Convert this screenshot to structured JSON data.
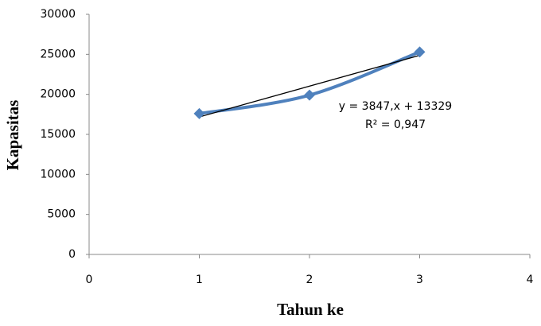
{
  "chart_data": {
    "type": "scatter",
    "x_label": "Tahun ke",
    "y_label": "Kapasitas",
    "x": [
      1,
      2,
      3
    ],
    "series": [
      {
        "name": "Kapasitas",
        "color": "#4f81bd",
        "values": [
          17600,
          19900,
          25300
        ]
      }
    ],
    "trendline": {
      "slope": 3847,
      "intercept": 13329,
      "color": "#000000",
      "equation": "y = 3847,x + 13329",
      "r_squared": "R² = 0,947"
    },
    "xlim": [
      0,
      4
    ],
    "xticks": [
      0,
      1,
      2,
      3,
      4
    ],
    "ylim": [
      0,
      30000
    ],
    "yticks": [
      0,
      5000,
      10000,
      15000,
      20000,
      25000,
      30000
    ],
    "grid": false
  }
}
